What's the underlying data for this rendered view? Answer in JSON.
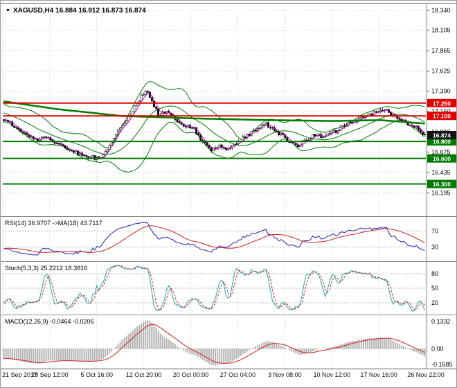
{
  "window": {
    "background": "#ffffff"
  },
  "symbol_header": {
    "marker": "▼",
    "title": "XAGUSD,H4 16.884 16.912 16.873 16.874"
  },
  "panel_labels": {
    "rsi": "RSI(14) 36.9707  ->MA(18) 43.7117",
    "stoch": "Stoch(5,3,3) 25.2212 18.3816",
    "macd": "MACD(12,26,9) -0.0464 -0.0206"
  },
  "chart_data": {
    "type": "candlestick",
    "symbol": "XAGUSD",
    "timeframe": "H4",
    "current_bar": {
      "open": 16.884,
      "high": 16.912,
      "low": 16.873,
      "close": 16.874
    },
    "price_axis_labels": [
      "18.340",
      "18.105",
      "17.865",
      "17.625",
      "17.390",
      "17.150",
      "16.910",
      "16.675",
      "16.435",
      "16.195"
    ],
    "price_axis_values": [
      18.34,
      18.105,
      17.865,
      17.625,
      17.39,
      17.15,
      16.91,
      16.675,
      16.435,
      16.195
    ],
    "main_range": [
      15.93,
      18.42
    ],
    "time_axis_labels": [
      "21 Sep 2017",
      "28 Sep 12:00",
      "5 Oct 16:00",
      "12 Oct 20:00",
      "20 Oct 00:00",
      "27 Oct 04:00",
      "3 Nov 08:00",
      "10 Nov 12:00",
      "17 Nov 16:00",
      "26 Nov 22:00"
    ],
    "horizontal_lines": [
      {
        "price": 17.25,
        "label": "17.250",
        "color": "#e00000"
      },
      {
        "price": 17.1,
        "label": "17.100",
        "color": "#e00000"
      },
      {
        "price": 16.8,
        "label": "16.800",
        "color": "#007a00"
      },
      {
        "price": 16.6,
        "label": "16.600",
        "color": "#007a00"
      },
      {
        "price": 16.3,
        "label": "16.300",
        "color": "#007a00"
      }
    ],
    "current_price_tag": {
      "price": 16.874,
      "label": "16.874",
      "color": "#141414"
    },
    "grid_color": "#c9c9c9",
    "candles": {
      "count": 200,
      "warmup_start": -60,
      "seed": 11,
      "noise": 0.022,
      "wick": 0.03,
      "up_fill": "#ffffff",
      "down_fill": "#000000",
      "outline": "#000000",
      "anchors": [
        [
          -60,
          17.55
        ],
        [
          -45,
          17.42
        ],
        [
          -30,
          17.3
        ],
        [
          -15,
          17.18
        ],
        [
          -5,
          17.1
        ],
        [
          0,
          17.06
        ],
        [
          5,
          16.98
        ],
        [
          10,
          16.88
        ],
        [
          15,
          16.82
        ],
        [
          20,
          16.86
        ],
        [
          25,
          16.78
        ],
        [
          30,
          16.72
        ],
        [
          35,
          16.66
        ],
        [
          40,
          16.62
        ],
        [
          45,
          16.6
        ],
        [
          48,
          16.68
        ],
        [
          52,
          16.85
        ],
        [
          56,
          17.0
        ],
        [
          60,
          17.12
        ],
        [
          63,
          17.25
        ],
        [
          67,
          17.4
        ],
        [
          70,
          17.28
        ],
        [
          73,
          17.12
        ],
        [
          77,
          17.16
        ],
        [
          81,
          17.06
        ],
        [
          85,
          16.99
        ],
        [
          90,
          16.95
        ],
        [
          94,
          16.8
        ],
        [
          98,
          16.7
        ],
        [
          102,
          16.76
        ],
        [
          106,
          16.7
        ],
        [
          110,
          16.78
        ],
        [
          112,
          16.82
        ],
        [
          116,
          16.88
        ],
        [
          120,
          16.96
        ],
        [
          124,
          17.0
        ],
        [
          128,
          16.92
        ],
        [
          132,
          16.86
        ],
        [
          135,
          16.8
        ],
        [
          139,
          16.75
        ],
        [
          143,
          16.82
        ],
        [
          147,
          16.88
        ],
        [
          151,
          16.85
        ],
        [
          155,
          16.9
        ],
        [
          157,
          16.92
        ],
        [
          161,
          16.98
        ],
        [
          165,
          17.03
        ],
        [
          169,
          17.07
        ],
        [
          173,
          17.11
        ],
        [
          177,
          17.16
        ],
        [
          180,
          17.18
        ],
        [
          183,
          17.12
        ],
        [
          186,
          17.07
        ],
        [
          189,
          17.03
        ],
        [
          192,
          17.0
        ],
        [
          195,
          16.96
        ],
        [
          197,
          16.92
        ],
        [
          199,
          16.874
        ]
      ]
    },
    "trend_ma_points": [
      [
        0,
        17.27
      ],
      [
        25,
        17.18
      ],
      [
        55,
        17.1
      ],
      [
        90,
        17.07
      ],
      [
        125,
        17.05
      ],
      [
        155,
        17.04
      ],
      [
        178,
        17.05
      ],
      [
        199,
        17.01
      ]
    ],
    "indicators": {
      "bollinger": {
        "period": 20,
        "deviation": 2,
        "color": "#007a00"
      },
      "ma_trend": {
        "color": "#008000",
        "width": 2.6
      },
      "ma_fast": {
        "period": 4,
        "color": "#c800c8"
      },
      "rsi": {
        "period": 14,
        "value": 36.9707,
        "ma_period": 18,
        "ma_value": 43.7117,
        "color": "#2020b4",
        "ma_color": "#c82020",
        "levels": [
          70,
          30
        ],
        "axis_labels": [
          "70",
          "30"
        ],
        "range": [
          0,
          100
        ]
      },
      "stochastic": {
        "k": 5,
        "d": 3,
        "slowing": 3,
        "value_k": 25.2212,
        "value_d": 18.3816,
        "k_color": "#1fa8a0",
        "d_color": "#c82020",
        "levels": [
          80,
          50,
          20
        ],
        "axis_labels": [
          "80",
          "50",
          "20"
        ],
        "range": [
          0,
          100
        ]
      },
      "macd": {
        "fast": 12,
        "slow": 26,
        "signal": 9,
        "value": -0.0464,
        "signal_value": -0.0206,
        "hist_color": "#b2b2b2",
        "signal_color": "#c82020",
        "axis_labels": [
          "0.1332",
          "0.00",
          "-0.1685"
        ],
        "axis_values": [
          0.1332,
          0.0,
          -0.1685
        ]
      }
    }
  }
}
